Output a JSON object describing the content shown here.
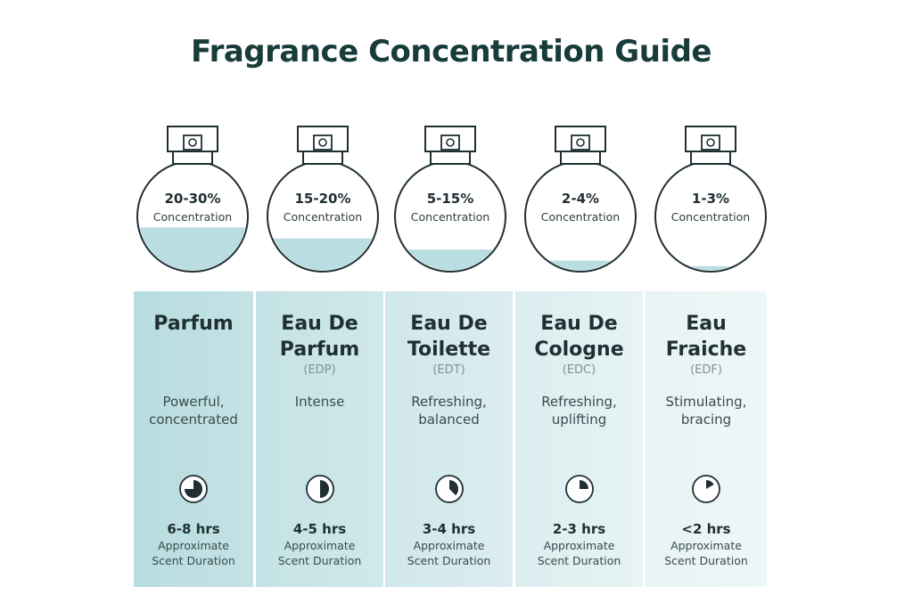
{
  "title": "Fragrance Concentration Guide",
  "colors": {
    "title": "#173c3a",
    "liquid": "#b9dde0",
    "panel_dark": "#b9dde0",
    "panel_light": "#eaf5f6",
    "outline": "#1f2f33"
  },
  "bottles": [
    {
      "percent": "20-30%",
      "label": "Concentration",
      "fill_level": 0.4
    },
    {
      "percent": "15-20%",
      "label": "Concentration",
      "fill_level": 0.3
    },
    {
      "percent": "5-15%",
      "label": "Concentration",
      "fill_level": 0.2
    },
    {
      "percent": "2-4%",
      "label": "Concentration",
      "fill_level": 0.1
    },
    {
      "percent": "1-3%",
      "label": "Concentration",
      "fill_level": 0.05
    }
  ],
  "types": [
    {
      "name_line1": "Parfum",
      "name_line2": "",
      "abbr": "",
      "desc_line1": "Powerful,",
      "desc_line2": "concentrated",
      "hours": "6-8 hrs",
      "approx_line1": "Approximate",
      "approx_line2": "Scent Duration",
      "clock_fraction": 0.75
    },
    {
      "name_line1": "Eau De",
      "name_line2": "Parfum",
      "abbr": "(EDP)",
      "desc_line1": "Intense",
      "desc_line2": "",
      "hours": "4-5 hrs",
      "approx_line1": "Approximate",
      "approx_line2": "Scent Duration",
      "clock_fraction": 0.5
    },
    {
      "name_line1": "Eau De",
      "name_line2": "Toilette",
      "abbr": "(EDT)",
      "desc_line1": "Refreshing,",
      "desc_line2": "balanced",
      "hours": "3-4 hrs",
      "approx_line1": "Approximate",
      "approx_line2": "Scent Duration",
      "clock_fraction": 0.375
    },
    {
      "name_line1": "Eau De",
      "name_line2": "Cologne",
      "abbr": "(EDC)",
      "desc_line1": "Refreshing,",
      "desc_line2": "uplifting",
      "hours": "2-3 hrs",
      "approx_line1": "Approximate",
      "approx_line2": "Scent Duration",
      "clock_fraction": 0.25
    },
    {
      "name_line1": "Eau",
      "name_line2": "Fraiche",
      "abbr": "(EDF)",
      "desc_line1": "Stimulating,",
      "desc_line2": "bracing",
      "hours": "<2 hrs",
      "approx_line1": "Approximate",
      "approx_line2": "Scent Duration",
      "clock_fraction": 0.167
    }
  ]
}
